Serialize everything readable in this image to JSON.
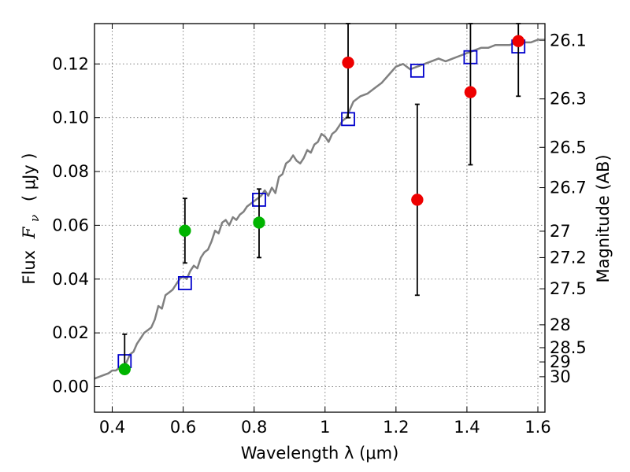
{
  "chart_data": {
    "type": "scatter",
    "xlabel": "Wavelength  λ (μm)",
    "ylabel_prefix": "Flux",
    "ylabel_symbol": "F",
    "ylabel_sub": "ν",
    "ylabel_unit": "( μJy )",
    "y2label": "Magnitude (AB)",
    "xlim": [
      0.35,
      1.62
    ],
    "ylim": [
      -0.0095,
      0.135
    ],
    "xticks": [
      0.4,
      0.6,
      0.8,
      1.0,
      1.2,
      1.4,
      1.6
    ],
    "xtick_labels": [
      "0.4",
      "0.6",
      "0.8",
      "1",
      "1.2",
      "1.4",
      "1.6"
    ],
    "yticks": [
      0.0,
      0.02,
      0.04,
      0.06,
      0.08,
      0.1,
      0.12
    ],
    "ytick_labels": [
      "0.00",
      "0.02",
      "0.04",
      "0.06",
      "0.08",
      "0.10",
      "0.12"
    ],
    "y2ticks": [
      {
        "flux": 0.1287,
        "label": "26.1"
      },
      {
        "flux": 0.107,
        "label": "26.3"
      },
      {
        "flux": 0.089,
        "label": "26.5"
      },
      {
        "flux": 0.074,
        "label": "26.7"
      },
      {
        "flux": 0.0578,
        "label": "27"
      },
      {
        "flux": 0.048,
        "label": "27.2"
      },
      {
        "flux": 0.0364,
        "label": "27.5"
      },
      {
        "flux": 0.023,
        "label": "28"
      },
      {
        "flux": 0.0145,
        "label": "28.5"
      },
      {
        "flux": 0.0092,
        "label": "29"
      },
      {
        "flux": 0.0037,
        "label": "30"
      }
    ],
    "colors": {
      "model": "#808080",
      "model_points": "#0000cc",
      "optical": "#00b400",
      "infrared": "#ee0000",
      "errorbar": "#000000"
    },
    "series": [
      {
        "name": "model-spectrum",
        "kind": "line",
        "x": [
          0.35,
          0.37,
          0.39,
          0.4,
          0.41,
          0.42,
          0.43,
          0.44,
          0.45,
          0.46,
          0.47,
          0.48,
          0.49,
          0.5,
          0.51,
          0.52,
          0.53,
          0.54,
          0.55,
          0.56,
          0.57,
          0.58,
          0.59,
          0.6,
          0.61,
          0.62,
          0.63,
          0.64,
          0.65,
          0.66,
          0.67,
          0.68,
          0.69,
          0.7,
          0.71,
          0.72,
          0.73,
          0.74,
          0.75,
          0.76,
          0.77,
          0.78,
          0.79,
          0.8,
          0.81,
          0.82,
          0.83,
          0.84,
          0.85,
          0.86,
          0.87,
          0.88,
          0.89,
          0.9,
          0.91,
          0.92,
          0.93,
          0.94,
          0.95,
          0.96,
          0.97,
          0.98,
          0.99,
          1.0,
          1.01,
          1.02,
          1.03,
          1.04,
          1.05,
          1.06,
          1.07,
          1.08,
          1.1,
          1.12,
          1.14,
          1.16,
          1.18,
          1.2,
          1.22,
          1.24,
          1.26,
          1.28,
          1.3,
          1.32,
          1.34,
          1.36,
          1.38,
          1.4,
          1.42,
          1.44,
          1.46,
          1.48,
          1.5,
          1.52,
          1.54,
          1.56,
          1.58,
          1.6,
          1.62
        ],
        "y": [
          0.003,
          0.004,
          0.005,
          0.006,
          0.006,
          0.007,
          0.008,
          0.009,
          0.012,
          0.013,
          0.016,
          0.018,
          0.02,
          0.021,
          0.022,
          0.025,
          0.03,
          0.029,
          0.034,
          0.035,
          0.036,
          0.038,
          0.04,
          0.041,
          0.04,
          0.043,
          0.045,
          0.044,
          0.048,
          0.05,
          0.051,
          0.054,
          0.058,
          0.057,
          0.061,
          0.062,
          0.06,
          0.063,
          0.062,
          0.064,
          0.065,
          0.067,
          0.068,
          0.069,
          0.07,
          0.071,
          0.073,
          0.071,
          0.074,
          0.072,
          0.078,
          0.079,
          0.083,
          0.084,
          0.086,
          0.084,
          0.083,
          0.085,
          0.088,
          0.087,
          0.09,
          0.091,
          0.094,
          0.093,
          0.091,
          0.094,
          0.095,
          0.097,
          0.099,
          0.1,
          0.103,
          0.106,
          0.108,
          0.109,
          0.111,
          0.113,
          0.116,
          0.119,
          0.12,
          0.118,
          0.119,
          0.12,
          0.121,
          0.122,
          0.121,
          0.122,
          0.123,
          0.124,
          0.125,
          0.126,
          0.126,
          0.127,
          0.127,
          0.127,
          0.128,
          0.128,
          0.128,
          0.129,
          0.129
        ]
      },
      {
        "name": "model-bandpass-flux",
        "kind": "open-square",
        "x": [
          0.435,
          0.605,
          0.814,
          1.065,
          1.26,
          1.41,
          1.545
        ],
        "y": [
          0.0095,
          0.0385,
          0.0695,
          0.0995,
          0.1175,
          0.1225,
          0.1265
        ]
      },
      {
        "name": "optical-photometry",
        "kind": "filled-circle",
        "x": [
          0.435,
          0.605,
          0.814
        ],
        "y": [
          0.0065,
          0.058,
          0.061
        ],
        "yerr_low": [
          0.0065,
          0.046,
          0.048
        ],
        "yerr_high": [
          0.0195,
          0.07,
          0.0735
        ]
      },
      {
        "name": "infrared-photometry",
        "kind": "filled-circle",
        "x": [
          1.065,
          1.26,
          1.41,
          1.545
        ],
        "y": [
          0.1205,
          0.0695,
          0.1095,
          0.1285
        ],
        "yerr_low": [
          0.1,
          0.034,
          0.0825,
          0.108
        ],
        "yerr_high": [
          0.135,
          0.105,
          0.135,
          0.135
        ]
      }
    ]
  }
}
